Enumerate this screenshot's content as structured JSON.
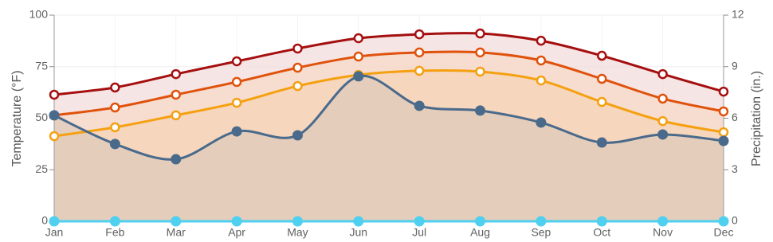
{
  "chart_data": {
    "type": "line",
    "categories": [
      "Jan",
      "Feb",
      "Mar",
      "Apr",
      "May",
      "Jun",
      "Jul",
      "Aug",
      "Sep",
      "Oct",
      "Nov",
      "Dec"
    ],
    "y_label": "Temperature (°F)",
    "y2_label": "Precipitation (in.)",
    "ylim": [
      0,
      100
    ],
    "yticks": [
      0,
      25,
      50,
      75,
      100
    ],
    "y2lim": [
      0,
      12
    ],
    "y2ticks": [
      0,
      3,
      6,
      9,
      12
    ],
    "grid": true,
    "series": [
      {
        "color": "#a50f0f",
        "fill": "#f3dcdc",
        "values": [
          61.4,
          64.9,
          71.4,
          77.6,
          83.8,
          88.8,
          90.7,
          91.1,
          87.6,
          80.3,
          71.4,
          62.9
        ]
      },
      {
        "color": "#e0520c",
        "fill": "#f6d9c7",
        "values": [
          51.4,
          55.2,
          61.4,
          67.6,
          74.5,
          79.9,
          81.9,
          81.9,
          78.0,
          69.1,
          59.5,
          53.3
        ]
      },
      {
        "color": "#f5a010",
        "fill": "#f5d3b5",
        "values": [
          41.3,
          45.6,
          51.4,
          57.5,
          65.6,
          71.0,
          73.0,
          72.6,
          68.3,
          57.9,
          48.6,
          43.2
        ]
      },
      {
        "color": "#4a6a8c",
        "fill": "#dfc9bb",
        "filled_markers": true,
        "values": [
          51.4,
          37.5,
          30.1,
          43.6,
          41.7,
          70.3,
          56.0,
          53.7,
          47.9,
          38.2,
          42.1,
          39.0
        ]
      },
      {
        "color": "#4fd0f0",
        "axis": "y2",
        "filled_markers": true,
        "values": [
          0,
          0,
          0,
          0,
          0,
          0,
          0,
          0,
          0,
          0,
          0,
          0
        ]
      }
    ]
  }
}
